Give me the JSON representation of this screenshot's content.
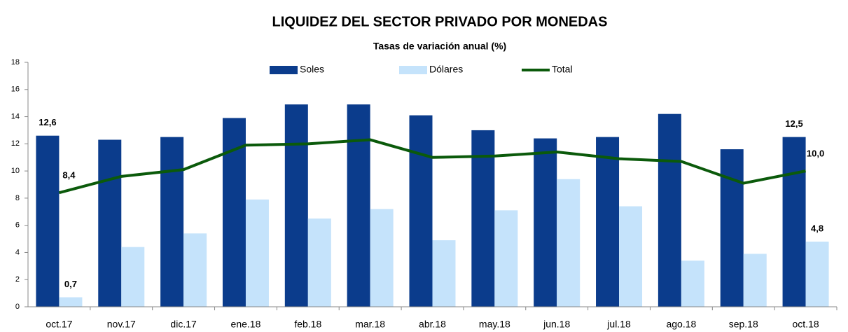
{
  "chart_data": {
    "type": "bar_line",
    "title": "LIQUIDEZ DEL SECTOR PRIVADO POR MONEDAS",
    "subtitle": "Tasas de variación anual (%)",
    "categories": [
      "oct.17",
      "nov.17",
      "dic.17",
      "ene.18",
      "feb.18",
      "mar.18",
      "abr.18",
      "may.18",
      "jun.18",
      "jul.18",
      "ago.18",
      "sep.18",
      "oct.18"
    ],
    "series": [
      {
        "name": "Soles",
        "color": "#0b3c8c",
        "kind": "bar",
        "values": [
          12.6,
          12.3,
          12.5,
          13.9,
          14.9,
          14.9,
          14.1,
          13.0,
          12.4,
          12.5,
          14.2,
          11.6,
          12.5
        ],
        "value_labels": [
          "12,6",
          null,
          null,
          null,
          null,
          null,
          null,
          null,
          null,
          null,
          null,
          null,
          "12,5"
        ]
      },
      {
        "name": "Dólares",
        "color": "#c5e3fb",
        "kind": "bar",
        "values": [
          0.7,
          4.4,
          5.4,
          7.9,
          6.5,
          7.2,
          4.9,
          7.1,
          9.4,
          7.4,
          3.4,
          3.9,
          4.8
        ],
        "value_labels": [
          "0,7",
          null,
          null,
          null,
          null,
          null,
          null,
          null,
          null,
          null,
          null,
          null,
          "4,8"
        ]
      },
      {
        "name": "Total",
        "color": "#0b5a0b",
        "kind": "line",
        "values": [
          8.4,
          9.6,
          10.1,
          11.9,
          12.0,
          12.3,
          11.0,
          11.1,
          11.4,
          10.9,
          10.7,
          9.1,
          10.0
        ],
        "value_labels": [
          "8,4",
          null,
          null,
          null,
          null,
          null,
          null,
          null,
          null,
          null,
          null,
          null,
          "10,0"
        ]
      }
    ],
    "ylim": [
      0,
      18
    ],
    "yticks": [
      0,
      2,
      4,
      6,
      8,
      10,
      12,
      14,
      16,
      18
    ],
    "grid": false,
    "legend": "top"
  }
}
